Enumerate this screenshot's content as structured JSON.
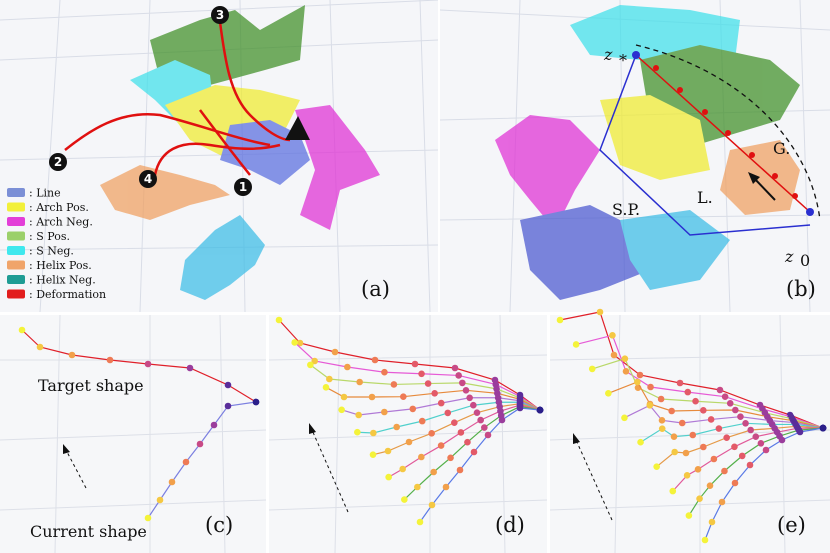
{
  "panels": {
    "a": {
      "label": "(a)"
    },
    "b": {
      "label": "(b)",
      "z_star": "z",
      "z_star_sub": "*",
      "z0": "z",
      "z0_sub": "0",
      "G": "G.",
      "L": "L.",
      "SP": "S.P."
    },
    "c": {
      "label": "(c)",
      "target": "Target shape",
      "current": "Current shape"
    },
    "d": {
      "label": "(d)"
    },
    "e": {
      "label": "(e)"
    }
  },
  "markers": [
    "1",
    "2",
    "3",
    "4"
  ],
  "legend": [
    {
      "label": ": Line",
      "color": "#7b8fd6"
    },
    {
      "label": ": Arch Pos.",
      "color": "#f2f03a"
    },
    {
      "label": ": Arch Neg.",
      "color": "#e33fd8"
    },
    {
      "label": ": S Pos.",
      "color": "#9bd06a"
    },
    {
      "label": ": S Neg.",
      "color": "#3fe8ee"
    },
    {
      "label": ": Helix Pos.",
      "color": "#f0a46a"
    },
    {
      "label": ": Helix Neg.",
      "color": "#1f9c94"
    },
    {
      "label": ": Deformation",
      "color": "#e21d1d"
    }
  ]
}
